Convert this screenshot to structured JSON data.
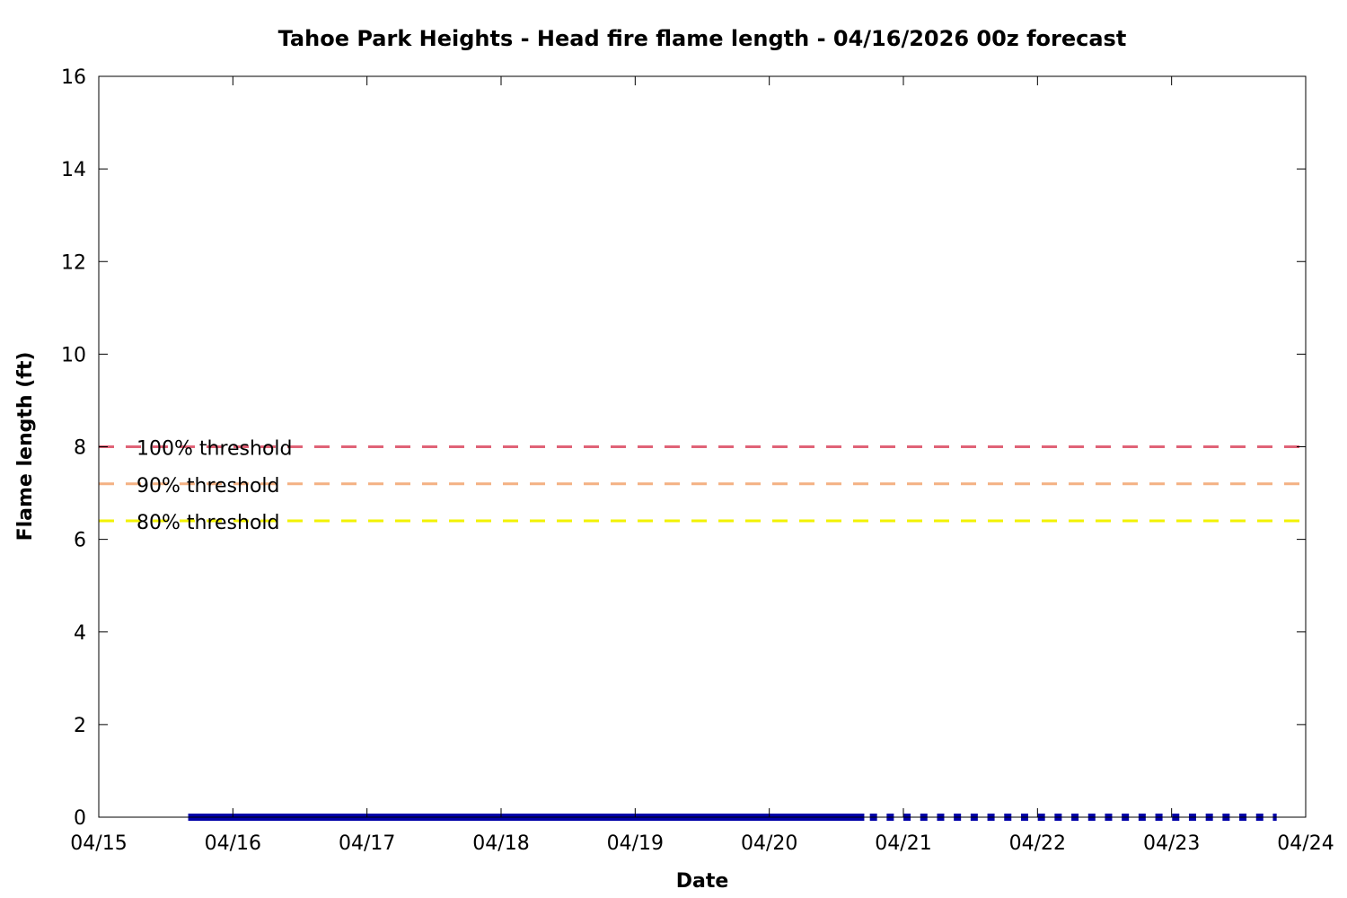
{
  "chart_data": {
    "type": "line",
    "title": "Tahoe Park Heights - Head fire flame length - 04/16/2026 00z forecast",
    "xlabel": "Date",
    "ylabel": "Flame length (ft)",
    "xlim": [
      "2026-04-15T00:00",
      "2026-04-24T00:00"
    ],
    "ylim": [
      0,
      16
    ],
    "x_ticks": [
      "04/15",
      "04/16",
      "04/17",
      "04/18",
      "04/19",
      "04/20",
      "04/21",
      "04/22",
      "04/23",
      "04/24"
    ],
    "y_ticks": [
      0,
      2,
      4,
      6,
      8,
      10,
      12,
      14,
      16
    ],
    "grid": false,
    "thresholds": [
      {
        "label": "100% threshold",
        "value": 8.0,
        "color": "#e06377"
      },
      {
        "label": "90% threshold",
        "value": 7.2,
        "color": "#f4b183"
      },
      {
        "label": "80% threshold",
        "value": 6.4,
        "color": "#f2f200"
      }
    ],
    "series": [
      {
        "style": "solid",
        "color": "#0000a8",
        "x": [
          "2026-04-15T16:00",
          "2026-04-20T17:00"
        ],
        "y": [
          0,
          0
        ]
      },
      {
        "style": "dotted",
        "color": "#0000a8",
        "x": [
          "2026-04-20T18:00",
          "2026-04-23T18:00"
        ],
        "y": [
          0,
          0
        ]
      }
    ]
  }
}
